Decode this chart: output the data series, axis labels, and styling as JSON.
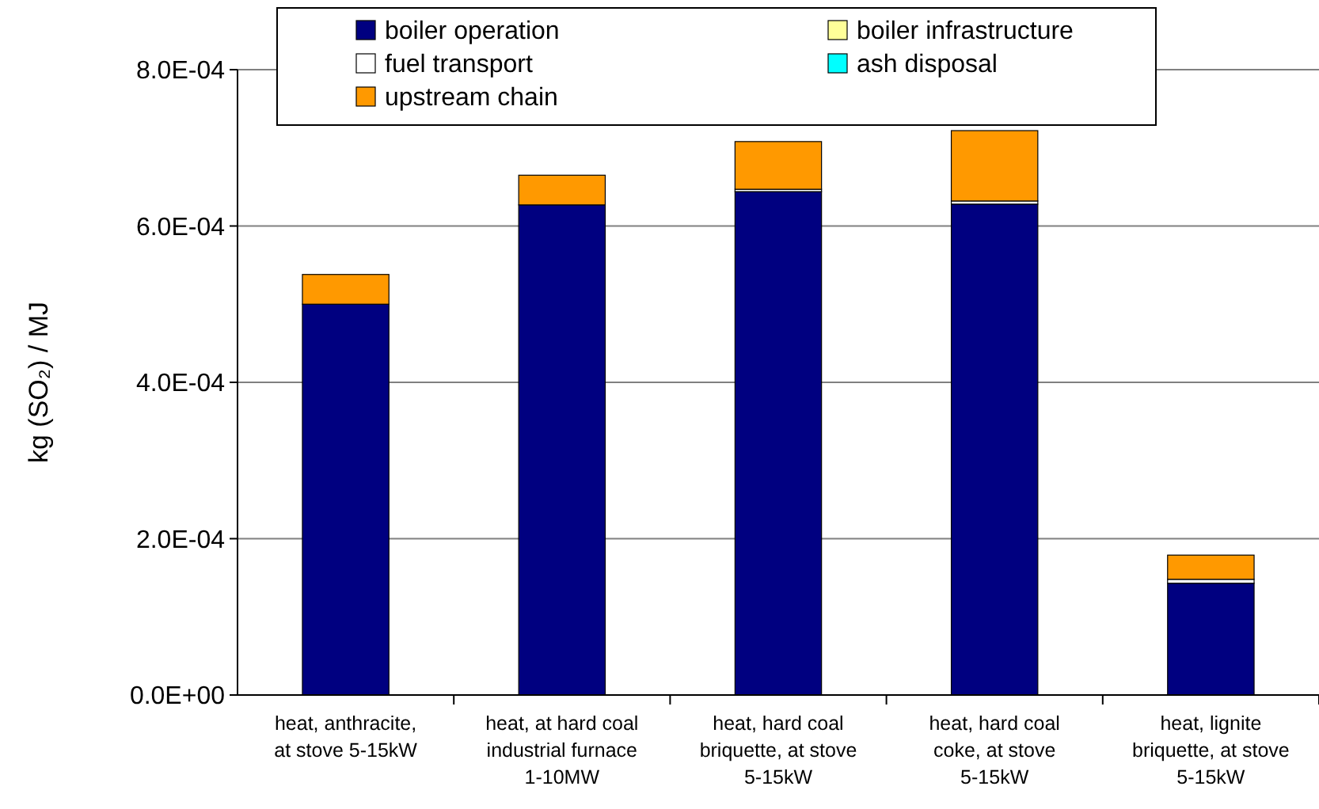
{
  "chart_data": {
    "type": "bar",
    "stacked": true,
    "ylabel": "kg (SO₂) / MJ",
    "categories": [
      "heat, anthracite, at stove 5-15kW",
      "heat, at hard coal industrial furnace 1-10MW",
      "heat, hard coal briquette, at stove 5-15kW",
      "heat, hard coal coke, at stove 5-15kW",
      "heat, lignite briquette, at stove 5-15kW"
    ],
    "series": [
      {
        "name": "boiler operation",
        "color": "#000080",
        "values": [
          0.0005,
          0.000627,
          0.000644,
          0.000628,
          0.000143
        ]
      },
      {
        "name": "boiler infrastructure",
        "color": "#ffff99",
        "values": [
          0,
          0,
          0,
          0,
          0
        ]
      },
      {
        "name": "fuel transport",
        "color": "#ffffff",
        "values": [
          0,
          0,
          3e-06,
          4e-06,
          5e-06
        ]
      },
      {
        "name": "ash disposal",
        "color": "#00ffff",
        "values": [
          0,
          0,
          0,
          0,
          0
        ]
      },
      {
        "name": "upstream chain",
        "color": "#ff9900",
        "values": [
          3.8e-05,
          3.8e-05,
          6.1e-05,
          9e-05,
          3.1e-05
        ]
      }
    ],
    "ylim": [
      0,
      0.0008
    ],
    "yticks": [
      {
        "value": 0,
        "label": "0.0E+00"
      },
      {
        "value": 0.0002,
        "label": "2.0E-04"
      },
      {
        "value": 0.0004,
        "label": "4.0E-04"
      },
      {
        "value": 0.0006,
        "label": "6.0E-04"
      },
      {
        "value": 0.0008,
        "label": "8.0E-04"
      }
    ],
    "grid": "y",
    "legend": "top"
  }
}
